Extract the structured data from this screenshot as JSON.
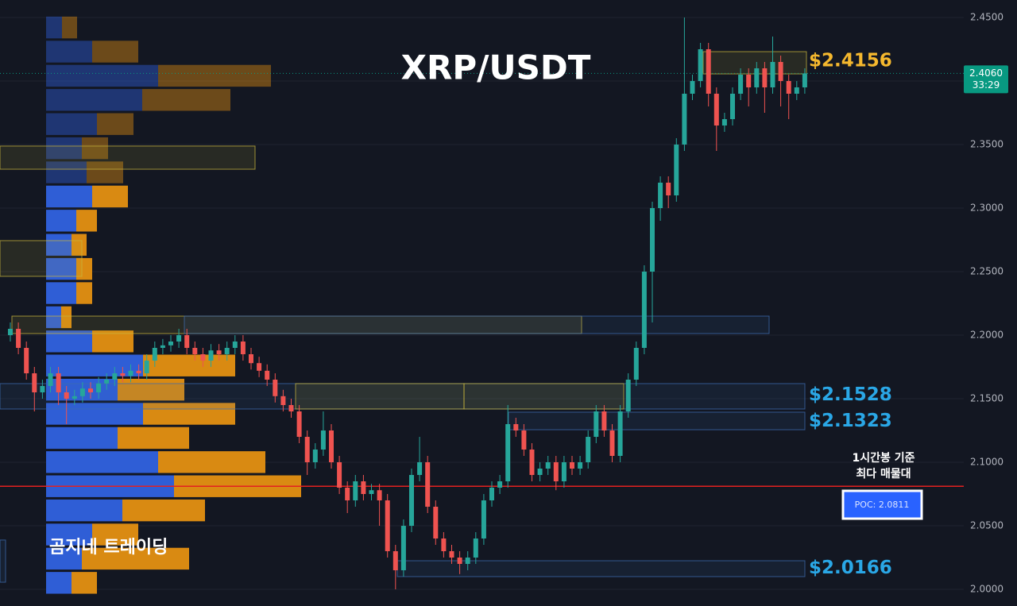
{
  "chart_data": {
    "type": "candlestick",
    "title": "XRP/USDT",
    "watermark": "곰지네 트레이딩",
    "annotation": [
      "1시간봉 기준",
      "최다 매물대"
    ],
    "ylim": [
      1.98688,
      2.46375
    ],
    "yticks": [
      {
        "value": 2.0,
        "label": "2.0000"
      },
      {
        "value": 2.05,
        "label": "2.0500"
      },
      {
        "value": 2.1,
        "label": "2.1000"
      },
      {
        "value": 2.15,
        "label": "2.1500"
      },
      {
        "value": 2.2,
        "label": "2.2000"
      },
      {
        "value": 2.25,
        "label": "2.2500"
      },
      {
        "value": 2.3,
        "label": "2.3000"
      },
      {
        "value": 2.35,
        "label": "2.3500"
      },
      {
        "value": 2.4,
        "label": "2.4000"
      },
      {
        "value": 2.45,
        "label": "2.4500"
      }
    ],
    "grid": true,
    "series": {
      "up_color": "#26a69a",
      "down_color": "#ef5350",
      "open": [
        2.2,
        2.205,
        2.19,
        2.17,
        2.155,
        2.16,
        2.17,
        2.155,
        2.15,
        2.152,
        2.158,
        2.155,
        2.162,
        2.165,
        2.17,
        2.168,
        2.172,
        2.17,
        2.18,
        2.19,
        2.192,
        2.195,
        2.2,
        2.19,
        2.185,
        2.18,
        2.188,
        2.185,
        2.19,
        2.195,
        2.185,
        2.178,
        2.172,
        2.165,
        2.152,
        2.145,
        2.14,
        2.12,
        2.1,
        2.11,
        2.125,
        2.1,
        2.08,
        2.07,
        2.085,
        2.075,
        2.078,
        2.07,
        2.03,
        2.015,
        2.05,
        2.09,
        2.1,
        2.065,
        2.04,
        2.03,
        2.025,
        2.02,
        2.025,
        2.04,
        2.07,
        2.08,
        2.085,
        2.13,
        2.125,
        2.11,
        2.09,
        2.095,
        2.1,
        2.085,
        2.1,
        2.095,
        2.1,
        2.12,
        2.14,
        2.125,
        2.105,
        2.14,
        2.165,
        2.19,
        2.25,
        2.3,
        2.32,
        2.31,
        2.35,
        2.39,
        2.4,
        2.425,
        2.39,
        2.365,
        2.37,
        2.39,
        2.405,
        2.395,
        2.41,
        2.395,
        2.415,
        2.4,
        2.39,
        2.395
      ],
      "high": [
        2.21,
        2.21,
        2.195,
        2.175,
        2.165,
        2.175,
        2.175,
        2.16,
        2.157,
        2.163,
        2.163,
        2.167,
        2.17,
        2.175,
        2.175,
        2.177,
        2.177,
        2.185,
        2.195,
        2.197,
        2.2,
        2.205,
        2.205,
        2.195,
        2.19,
        2.193,
        2.193,
        2.195,
        2.2,
        2.2,
        2.19,
        2.183,
        2.177,
        2.17,
        2.157,
        2.15,
        2.145,
        2.125,
        2.115,
        2.14,
        2.13,
        2.105,
        2.085,
        2.09,
        2.09,
        2.083,
        2.083,
        2.075,
        2.035,
        2.055,
        2.095,
        2.12,
        2.105,
        2.07,
        2.045,
        2.035,
        2.03,
        2.03,
        2.045,
        2.075,
        2.085,
        2.09,
        2.145,
        2.135,
        2.13,
        2.115,
        2.1,
        2.105,
        2.105,
        2.105,
        2.105,
        2.105,
        2.125,
        2.145,
        2.145,
        2.13,
        2.145,
        2.17,
        2.195,
        2.255,
        2.305,
        2.325,
        2.325,
        2.355,
        2.45,
        2.405,
        2.43,
        2.43,
        2.395,
        2.375,
        2.395,
        2.41,
        2.41,
        2.415,
        2.415,
        2.435,
        2.42,
        2.405,
        2.4,
        2.41
      ],
      "low": [
        2.195,
        2.185,
        2.165,
        2.14,
        2.15,
        2.155,
        2.145,
        2.13,
        2.145,
        2.147,
        2.15,
        2.15,
        2.157,
        2.16,
        2.163,
        2.163,
        2.165,
        2.165,
        2.175,
        2.185,
        2.187,
        2.19,
        2.185,
        2.18,
        2.175,
        2.175,
        2.18,
        2.18,
        2.185,
        2.18,
        2.173,
        2.167,
        2.16,
        2.147,
        2.14,
        2.135,
        2.115,
        2.09,
        2.095,
        2.105,
        2.095,
        2.075,
        2.06,
        2.065,
        2.07,
        2.07,
        2.05,
        2.025,
        2.0,
        2.01,
        2.045,
        2.085,
        2.06,
        2.035,
        2.025,
        2.02,
        2.012,
        2.015,
        2.02,
        2.035,
        2.065,
        2.075,
        2.08,
        2.12,
        2.105,
        2.085,
        2.085,
        2.09,
        2.078,
        2.08,
        2.09,
        2.09,
        2.095,
        2.115,
        2.12,
        2.1,
        2.1,
        2.135,
        2.16,
        2.185,
        2.21,
        2.29,
        2.3,
        2.305,
        2.345,
        2.385,
        2.395,
        2.38,
        2.345,
        2.36,
        2.365,
        2.385,
        2.38,
        2.39,
        2.375,
        2.39,
        2.38,
        2.37,
        2.385,
        2.39
      ],
      "close": [
        2.205,
        2.19,
        2.17,
        2.155,
        2.16,
        2.17,
        2.155,
        2.15,
        2.152,
        2.158,
        2.155,
        2.162,
        2.165,
        2.17,
        2.168,
        2.172,
        2.17,
        2.18,
        2.19,
        2.192,
        2.195,
        2.2,
        2.19,
        2.185,
        2.18,
        2.188,
        2.185,
        2.19,
        2.195,
        2.185,
        2.178,
        2.172,
        2.165,
        2.152,
        2.145,
        2.14,
        2.12,
        2.1,
        2.11,
        2.125,
        2.1,
        2.08,
        2.07,
        2.085,
        2.075,
        2.078,
        2.07,
        2.03,
        2.015,
        2.05,
        2.09,
        2.1,
        2.065,
        2.04,
        2.03,
        2.025,
        2.02,
        2.025,
        2.04,
        2.07,
        2.08,
        2.085,
        2.13,
        2.125,
        2.11,
        2.09,
        2.095,
        2.1,
        2.085,
        2.1,
        2.095,
        2.1,
        2.12,
        2.14,
        2.125,
        2.105,
        2.14,
        2.165,
        2.19,
        2.25,
        2.3,
        2.32,
        2.31,
        2.35,
        2.39,
        2.4,
        2.425,
        2.39,
        2.365,
        2.37,
        2.39,
        2.405,
        2.395,
        2.41,
        2.395,
        2.415,
        2.4,
        2.39,
        2.395,
        2.406
      ]
    },
    "profile": {
      "up_color": "#2f5ed6",
      "down_color": "#d98a12",
      "bins": [
        2.4513,
        2.4323,
        2.4133,
        2.3943,
        2.3753,
        2.3563,
        2.3373,
        2.3183,
        2.2993,
        2.2803,
        2.2613,
        2.2423,
        2.2233,
        2.2043,
        2.1853,
        2.1663,
        2.1473,
        2.1283,
        2.1093,
        2.0903,
        2.0713,
        2.0523,
        2.0333,
        2.0143,
        1.9953
      ],
      "up": [
        20,
        58,
        141,
        121,
        64,
        45,
        51,
        58,
        38,
        32,
        38,
        38,
        19,
        58,
        122,
        90,
        122,
        90,
        141,
        161,
        96,
        58,
        45,
        32
      ],
      "down": [
        19,
        58,
        142,
        111,
        46,
        33,
        46,
        45,
        26,
        19,
        20,
        20,
        13,
        52,
        116,
        84,
        116,
        90,
        135,
        160,
        104,
        58,
        135,
        32
      ]
    },
    "zones": [
      {
        "low": 2.4056,
        "high": 2.4231,
        "color": "#c8b43c"
      },
      {
        "low": 2.3306,
        "high": 2.3488,
        "color": "#c8b43c"
      },
      {
        "low": 2.2463,
        "high": 2.2744,
        "color": "#c8b43c"
      },
      {
        "low": 2.2013,
        "high": 2.215,
        "color": "#c8b43c"
      },
      {
        "low": 2.2013,
        "high": 2.215,
        "color": "#3d6cb0"
      },
      {
        "low": 2.1419,
        "high": 2.1619,
        "color": "#3d6cb0"
      },
      {
        "low": 2.1419,
        "high": 2.1619,
        "color": "#c8b43c"
      },
      {
        "low": 2.1419,
        "high": 2.1619,
        "color": "#c8b43c"
      },
      {
        "low": 2.1256,
        "high": 2.1394,
        "color": "#3d6cb0"
      },
      {
        "low": 2.01,
        "high": 2.0225,
        "color": "#3d6cb0"
      },
      {
        "low": 2.0056,
        "high": 2.0388,
        "color": "#3d6cb0"
      }
    ],
    "levels": [
      {
        "value": 2.4156,
        "label": "$2.4156",
        "color": "#f5b82e"
      },
      {
        "value": 2.1528,
        "label": "$2.1528",
        "color": "#2aa7e6"
      },
      {
        "value": 2.1323,
        "label": "$2.1323",
        "color": "#2aa7e6"
      },
      {
        "value": 2.0166,
        "label": "$2.0166",
        "color": "#2aa7e6"
      }
    ],
    "poc": {
      "value": 2.0811,
      "label": "POC: 2.0811",
      "color": "#e32020"
    },
    "last": {
      "value": 2.406,
      "label": "2.4060",
      "timer": "33:29",
      "color": "#089981"
    }
  }
}
